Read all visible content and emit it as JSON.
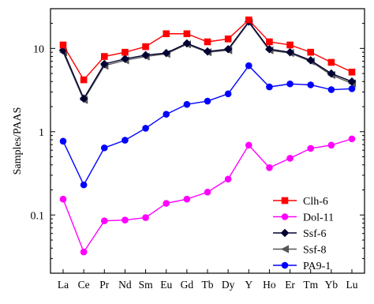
{
  "chart_data": {
    "type": "line",
    "ylabel": "Samples/PAAS",
    "yscale": "log",
    "ylim": [
      0.02,
      30
    ],
    "ytick_values": [
      0.1,
      1,
      10
    ],
    "ytick_labels": [
      "0.1",
      "1",
      "10"
    ],
    "categories": [
      "La",
      "Ce",
      "Pr",
      "Nd",
      "Sm",
      "Eu",
      "Gd",
      "Tb",
      "Dy",
      "Y",
      "Ho",
      "Er",
      "Tm",
      "Yb",
      "Lu"
    ],
    "grid": false,
    "legend_position": "bottom-right",
    "series": [
      {
        "name": "Clh-6",
        "color": "#ff0000",
        "marker": "square",
        "values": [
          11,
          4.2,
          8.0,
          9.0,
          10.5,
          15.0,
          15.0,
          12.0,
          13.0,
          22.0,
          12.0,
          11.0,
          9.0,
          6.8,
          5.2
        ]
      },
      {
        "name": "Dol-11",
        "color": "#ff00ff",
        "marker": "circle",
        "values": [
          0.155,
          0.036,
          0.085,
          0.087,
          0.093,
          0.138,
          0.155,
          0.188,
          0.27,
          0.69,
          0.37,
          0.48,
          0.63,
          0.69,
          0.82
        ]
      },
      {
        "name": "Ssf-6",
        "color": "#000033",
        "marker": "diamond",
        "values": [
          9.5,
          2.5,
          6.5,
          7.5,
          8.3,
          8.8,
          11.5,
          9.2,
          9.8,
          21.0,
          9.8,
          9.0,
          7.2,
          5.0,
          4.0
        ]
      },
      {
        "name": "Ssf-8",
        "color": "#555555",
        "marker": "triangle-left",
        "values": [
          9.0,
          2.4,
          6.2,
          7.2,
          8.0,
          8.6,
          11.2,
          9.0,
          9.5,
          20.5,
          9.5,
          8.8,
          7.0,
          4.8,
          3.8
        ]
      },
      {
        "name": "PA9-1",
        "color": "#0000ff",
        "marker": "circle",
        "values": [
          0.77,
          0.23,
          0.64,
          0.79,
          1.1,
          1.62,
          2.13,
          2.33,
          2.85,
          6.2,
          3.45,
          3.75,
          3.65,
          3.2,
          3.28
        ]
      }
    ]
  }
}
